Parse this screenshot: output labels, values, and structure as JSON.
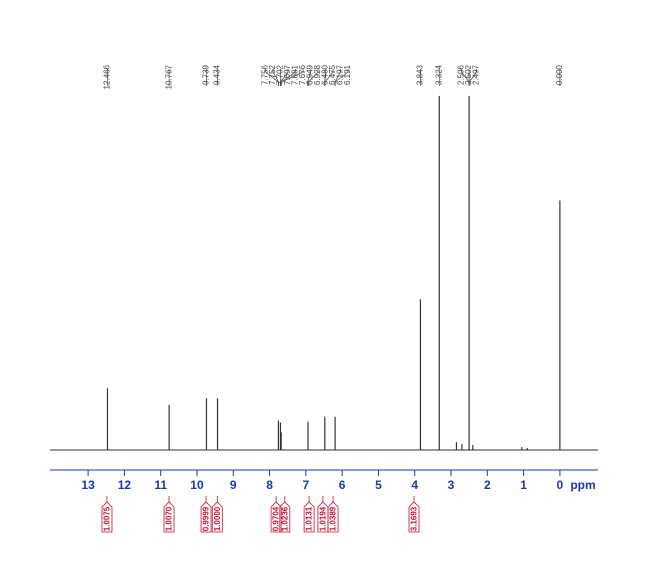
{
  "chart_data": {
    "type": "nmr",
    "xlim": [
      14.05,
      -1.05
    ],
    "ylim": [
      0,
      370
    ],
    "xticks": [
      13,
      12,
      11,
      10,
      9,
      8,
      7,
      6,
      5,
      4,
      3,
      2,
      1,
      0
    ],
    "x_unit": "ppm",
    "color": "#333333",
    "peaks": [
      12.466,
      10.767,
      9.739,
      9.434,
      7.756,
      7.752,
      7.702,
      7.697,
      7.681,
      7.676,
      6.949,
      6.928,
      {
        "value": 6.48,
        "label": "6.480"
      },
      6.475,
      6.197,
      6.191,
      3.843,
      3.324,
      2.506,
      2.502,
      2.497,
      {
        "value": 0,
        "label": "0.000"
      }
    ],
    "spectrum": {
      "x": [
        12.466,
        10.767,
        9.739,
        9.434,
        7.756,
        7.7,
        7.68,
        6.94,
        6.478,
        6.194,
        3.843,
        3.324,
        2.85,
        2.7,
        2.502,
        2.4,
        1.05,
        0.9,
        0
      ],
      "values": [
        63,
        46,
        53,
        53,
        30,
        28,
        18,
        29,
        34,
        34,
        154,
        362,
        8,
        6,
        362,
        5,
        3,
        2,
        255
      ]
    },
    "integrals": {
      "color": "#c8102e",
      "x": [
        12.48,
        10.77,
        9.75,
        9.44,
        7.82,
        7.58,
        6.91,
        6.53,
        6.25,
        4.02
      ],
      "values": [
        1.0075,
        1.007,
        0.9999,
        1,
        0.9704,
        1.0236,
        1.0131,
        1.0194,
        1.0389,
        3.1693
      ],
      "value_labels": [
        "1.0075",
        "1.0070",
        "0.9999",
        "1.0000",
        "0.9704",
        "1.0236",
        "1.0131",
        "1.0194",
        "1.0389",
        "3.1693"
      ]
    }
  }
}
